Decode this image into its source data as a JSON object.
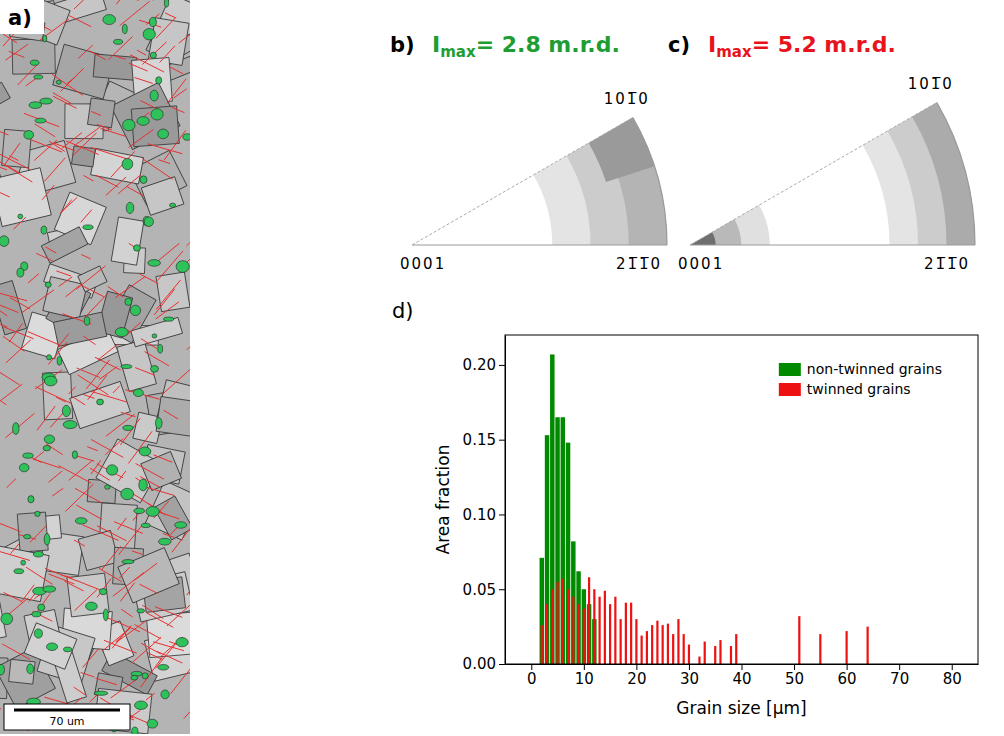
{
  "panel_labels": [
    "a)",
    "b)",
    "c)",
    "d)"
  ],
  "micrograph": {
    "scale_bar": "70 um"
  },
  "pole_figures": [
    {
      "title": {
        "symbol": "I",
        "subscript": "max",
        "rest": "= 2.8 m.r.d."
      },
      "color": "#1e9e32",
      "corners": [
        "0001",
        "21̅1̅0",
        "101̅0"
      ]
    },
    {
      "title": {
        "symbol": "I",
        "subscript": "max",
        "rest": "= 5.2 m.r.d."
      },
      "color": "#e8141c",
      "corners": [
        "0001",
        "21̅1̅0",
        "101̅0"
      ]
    }
  ],
  "chart_data": {
    "type": "bar",
    "x_label": "Grain size [µm]",
    "y_label": "Area fraction",
    "xlim": [
      -5,
      85
    ],
    "xticks": [
      0,
      10,
      20,
      30,
      40,
      50,
      60,
      70,
      80
    ],
    "ylim": [
      0,
      0.22
    ],
    "yticks": [
      {
        "value": 0,
        "label": "0.00"
      },
      {
        "value": 0.05,
        "label": "0.05"
      },
      {
        "value": 0.1,
        "label": "0.10"
      },
      {
        "value": 0.15,
        "label": "0.15"
      },
      {
        "value": 0.2,
        "label": "0.20"
      }
    ],
    "grid": false,
    "legend": "top-right",
    "series": [
      {
        "name": "non-twinned grains",
        "color": "#008a00",
        "x": [
          2,
          3,
          4,
          5,
          6,
          7,
          8,
          9,
          10,
          11,
          12
        ],
        "values": [
          0.071,
          0.153,
          0.207,
          0.165,
          0.165,
          0.148,
          0.082,
          0.062,
          0.05,
          0.04,
          0.03
        ]
      },
      {
        "name": "twinned grains",
        "color": "#ee1111",
        "x": [
          2,
          3,
          4,
          5,
          6,
          7,
          8,
          9,
          10,
          11,
          12,
          13,
          14,
          15,
          16,
          17,
          18,
          19,
          20,
          21,
          22,
          23,
          24,
          25,
          26,
          27,
          28,
          29,
          30,
          32,
          33,
          35,
          36,
          38,
          39,
          51,
          55,
          60,
          64
        ],
        "values": [
          0.026,
          0.04,
          0.05,
          0.055,
          0.057,
          0.05,
          0.045,
          0.04,
          0.037,
          0.058,
          0.05,
          0.045,
          0.049,
          0.04,
          0.045,
          0.03,
          0.041,
          0.041,
          0.03,
          0.019,
          0.022,
          0.026,
          0.029,
          0.026,
          0.027,
          0.02,
          0.03,
          0.02,
          0.013,
          0.005,
          0.015,
          0.012,
          0.016,
          0.012,
          0.02,
          0.032,
          0.02,
          0.022,
          0.025
        ]
      }
    ]
  }
}
